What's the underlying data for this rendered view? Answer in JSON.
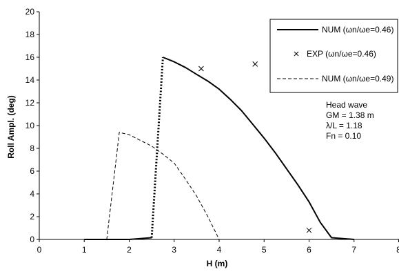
{
  "chart_data": {
    "type": "line",
    "xlabel": "H (m)",
    "ylabel": "Roll Ampl. (deg)",
    "xlim": [
      0,
      8
    ],
    "ylim": [
      0,
      20
    ],
    "xticks": [
      "0",
      "1",
      "2",
      "3",
      "4",
      "5",
      "6",
      "7",
      "8"
    ],
    "yticks": [
      "0",
      "2",
      "4",
      "6",
      "8",
      "10",
      "12",
      "14",
      "16",
      "18",
      "20"
    ],
    "grid": false,
    "legend_position": "top-right",
    "series": [
      {
        "name": "NUM (ωn/ωe=0.46)",
        "style": "solid",
        "x": [
          1.0,
          1.5,
          2.0,
          2.5
        ],
        "y": [
          0.0,
          0.0,
          0.0,
          0.15
        ]
      },
      {
        "name": "",
        "style": "dotted",
        "x": [
          2.5,
          2.75
        ],
        "y": [
          0.15,
          16.0
        ]
      },
      {
        "name": "",
        "style": "solid",
        "x": [
          2.75,
          3.0,
          3.25,
          3.5,
          3.75,
          4.0,
          4.25,
          4.5,
          4.75,
          5.0,
          5.25,
          5.5,
          5.75,
          6.0,
          6.25,
          6.5,
          7.0
        ],
        "y": [
          16.0,
          15.6,
          15.1,
          14.5,
          13.9,
          13.2,
          12.3,
          11.3,
          10.1,
          8.9,
          7.6,
          6.2,
          4.8,
          3.3,
          1.5,
          0.15,
          0.0
        ]
      },
      {
        "name": "EXP (ωn/ωe=0.46)",
        "style": "marker-x",
        "x": [
          3.6,
          4.8,
          6.0
        ],
        "y": [
          15.0,
          15.4,
          0.8
        ]
      },
      {
        "name": "NUM (ωn/ωe=0.49)",
        "style": "dashed",
        "x": [
          1.5,
          1.78,
          2.0,
          2.25,
          2.5,
          2.75,
          3.0,
          3.25,
          3.5,
          3.75,
          4.0
        ],
        "y": [
          0.0,
          9.4,
          9.2,
          8.7,
          8.2,
          7.5,
          6.7,
          5.3,
          3.8,
          2.0,
          0.0
        ]
      }
    ],
    "legend": [
      {
        "label": "NUM (ωn/ωe=0.46)",
        "style": "solid"
      },
      {
        "label": "EXP (ωn/ωe=0.46)",
        "style": "marker-x"
      },
      {
        "label": "NUM (ωn/ωe=0.49)",
        "style": "dashed"
      }
    ],
    "annotations": [
      "Head wave",
      "GM = 1.38 m",
      "λ/L = 1.18",
      "Fn = 0.10"
    ]
  }
}
